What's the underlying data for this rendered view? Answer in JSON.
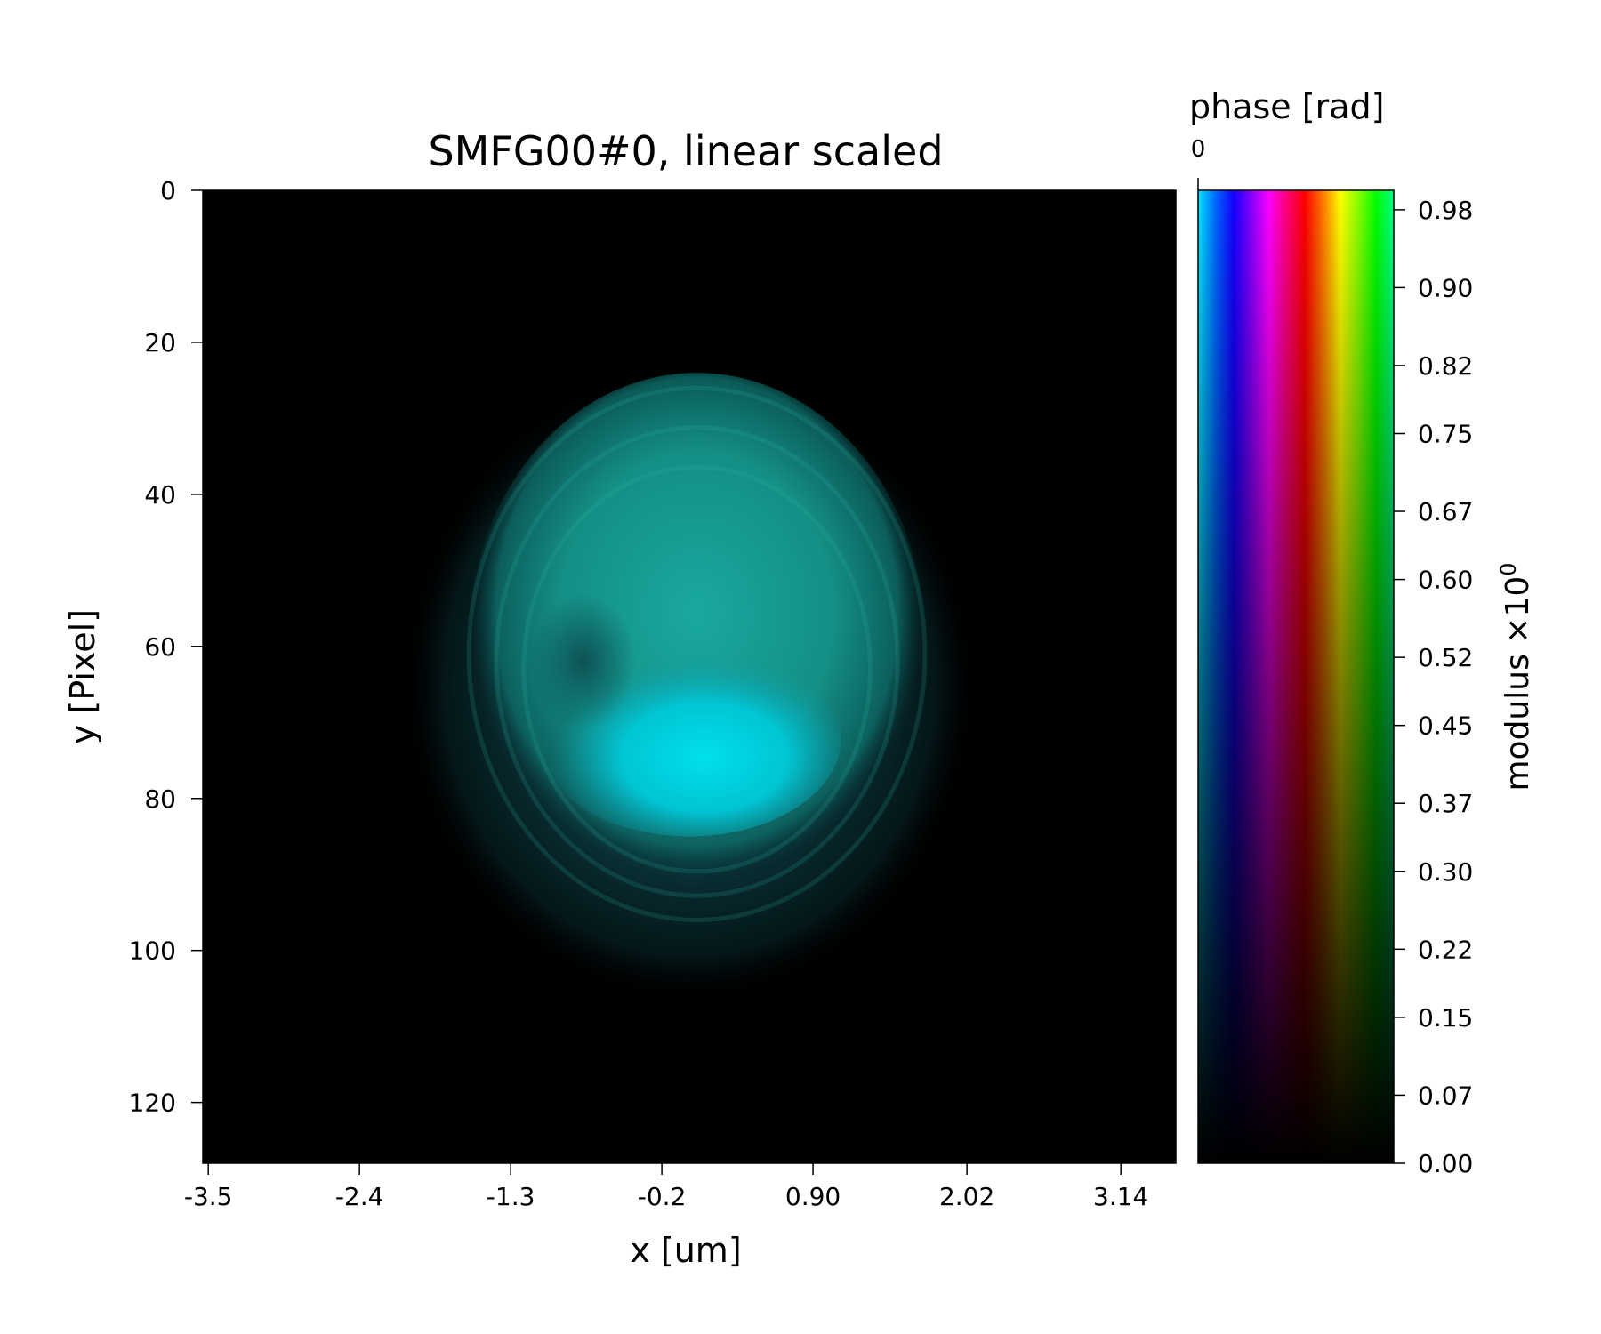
{
  "chart_data": {
    "type": "heatmap",
    "title": "SMFG00#0, linear scaled",
    "xlabel": "x [um]",
    "ylabel": "y [Pixel]",
    "x_ticks": [
      "-3.5",
      "-2.4",
      "-1.3",
      "-0.2",
      "0.90",
      "2.02",
      "3.14"
    ],
    "x_tick_values": [
      -3.5,
      -2.4,
      -1.3,
      -0.2,
      0.9,
      2.02,
      3.14
    ],
    "xlim": [
      -3.54,
      3.54
    ],
    "y_ticks": [
      "0",
      "20",
      "40",
      "60",
      "80",
      "100",
      "120"
    ],
    "y_tick_values": [
      0,
      20,
      40,
      60,
      80,
      100,
      120
    ],
    "ylim": [
      128,
      0
    ],
    "pixels": [
      128,
      128
    ],
    "grid": false,
    "features": [
      {
        "kind": "outer_halo",
        "cx": 64,
        "cy": 65,
        "rx": 38,
        "ry": 42,
        "modulus": 0.12,
        "phase_hue": "teal"
      },
      {
        "kind": "main_blob",
        "cx": 65,
        "cy": 59,
        "rx": 30,
        "ry": 35,
        "modulus": 0.5,
        "phase_hue": "teal-green"
      },
      {
        "kind": "bright_core",
        "cx": 64,
        "cy": 72,
        "rx": 20,
        "ry": 13,
        "modulus": 0.9,
        "phase_hue": "cyan"
      },
      {
        "kind": "dark_spot",
        "cx": 50,
        "cy": 62,
        "rx": 7,
        "ry": 9,
        "modulus": 0.25
      }
    ],
    "colorbar": {
      "title": "phase [rad]",
      "phase_tick": "0",
      "label": "modulus ×10",
      "label_exponent": "0",
      "ticks": [
        "0.98",
        "0.90",
        "0.82",
        "0.75",
        "0.67",
        "0.60",
        "0.52",
        "0.45",
        "0.37",
        "0.30",
        "0.22",
        "0.15",
        "0.07",
        "0.00"
      ],
      "tick_values": [
        0.98,
        0.9,
        0.82,
        0.75,
        0.67,
        0.6,
        0.52,
        0.45,
        0.37,
        0.3,
        0.22,
        0.15,
        0.07,
        0.0
      ],
      "range": [
        0,
        1
      ],
      "hue_stops": [
        "#00e5ff",
        "#0066ff",
        "#1400ff",
        "#8800ff",
        "#ff00ff",
        "#ff0077",
        "#ff0000",
        "#ff7700",
        "#ffff00",
        "#88ff00",
        "#00ff00",
        "#00ff88"
      ]
    }
  }
}
